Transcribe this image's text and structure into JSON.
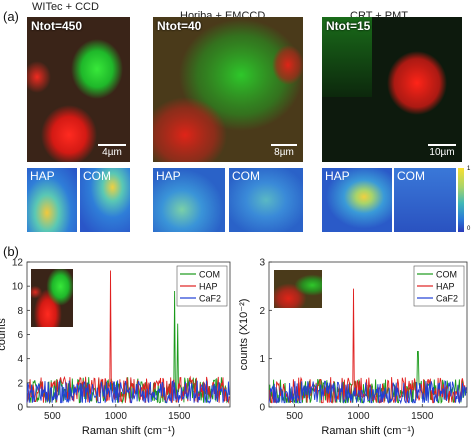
{
  "panel_a": {
    "label": "(a)",
    "columns": [
      {
        "title": "WITec + CCD",
        "ntot": "Ntot=450",
        "scale": "4µm",
        "left_thumb": "HAP",
        "right_thumb": "COM"
      },
      {
        "title": "Horiba + EMCCD",
        "ntot": "Ntot=40",
        "scale": "8µm",
        "left_thumb": "HAP",
        "right_thumb": "COM"
      },
      {
        "title": "CRT + PMT",
        "ntot": "Ntot=15",
        "scale": "10µm",
        "left_thumb": "HAP",
        "right_thumb": "COM"
      }
    ],
    "colorbar": {
      "max": "1",
      "min": "0"
    }
  },
  "panel_b": {
    "label": "(b)"
  },
  "chart_data": [
    {
      "type": "line",
      "xlabel": "Raman shift (cm⁻¹)",
      "ylabel": "counts",
      "xlim": [
        300,
        1900
      ],
      "ylim": [
        0,
        12
      ],
      "xticks": [
        500,
        1000,
        1500
      ],
      "yticks": [
        0,
        2,
        4,
        6,
        8,
        10,
        12
      ],
      "legend_position": "top-right",
      "series": [
        {
          "name": "COM",
          "color": "#1a9a1a",
          "baseline": 1.4,
          "noise": 1.1,
          "peaks": [
            [
              1463,
              9.6
            ],
            [
              1490,
              6.9
            ]
          ]
        },
        {
          "name": "HAP",
          "color": "#e02020",
          "baseline": 1.4,
          "noise": 1.1,
          "peaks": [
            [
              960,
              11.3
            ]
          ]
        },
        {
          "name": "CaF2",
          "color": "#1f3fd6",
          "baseline": 1.2,
          "noise": 1.0,
          "peaks": []
        }
      ]
    },
    {
      "type": "line",
      "xlabel": "Raman shift (cm⁻¹)",
      "ylabel": "counts (X10⁻²)",
      "xlim": [
        300,
        1850
      ],
      "ylim": [
        0,
        3
      ],
      "xticks": [
        500,
        1000,
        1500
      ],
      "yticks": [
        0,
        1,
        2,
        3
      ],
      "legend_position": "top-right",
      "series": [
        {
          "name": "COM",
          "color": "#1a9a1a",
          "baseline": 0.3,
          "noise": 0.28,
          "peaks": [
            [
              1465,
              1.15
            ]
          ]
        },
        {
          "name": "HAP",
          "color": "#e02020",
          "baseline": 0.32,
          "noise": 0.3,
          "peaks": [
            [
              960,
              2.45
            ]
          ]
        },
        {
          "name": "CaF2",
          "color": "#1f3fd6",
          "baseline": 0.28,
          "noise": 0.26,
          "peaks": []
        }
      ]
    }
  ]
}
